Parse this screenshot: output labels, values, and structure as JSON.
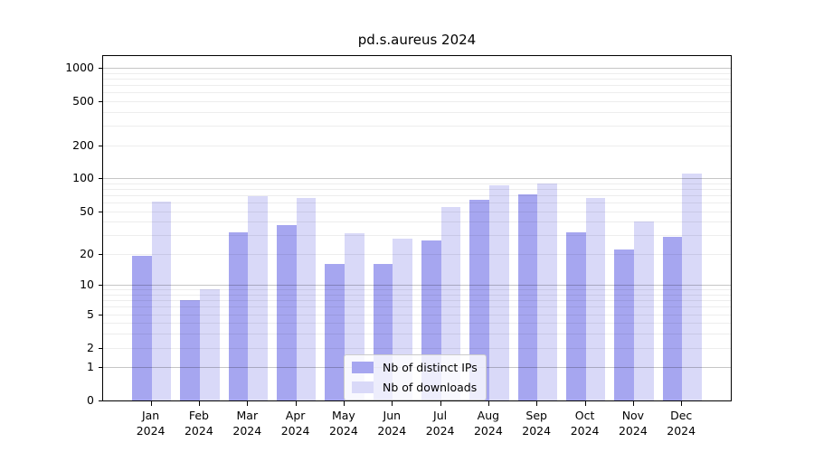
{
  "title": "pd.s.aureus 2024",
  "legend": {
    "position": "lower center",
    "items": [
      {
        "label": "Nb of distinct IPs",
        "color": "#a6a6f0"
      },
      {
        "label": "Nb of downloads",
        "color": "#d9d9f8"
      }
    ]
  },
  "axes": {
    "y_tick_labels": [
      "1000",
      "500",
      "200",
      "100",
      "50",
      "20",
      "10",
      "5",
      "2",
      "1",
      "0"
    ],
    "x_tick_labels": [
      "Jan 2024",
      "Feb 2024",
      "Mar 2024",
      "Apr 2024",
      "May 2024",
      "Jun 2024",
      "Jul 2024",
      "Aug 2024",
      "Sep 2024",
      "Oct 2024",
      "Nov 2024",
      "Dec 2024"
    ]
  },
  "colors": {
    "grid_major": "#c6c6c6",
    "grid_minor": "#ededed",
    "spine": "#000000",
    "legend_border": "#cccccc"
  },
  "chart_data": {
    "type": "bar",
    "title": "pd.s.aureus 2024",
    "xlabel": "",
    "ylabel": "",
    "yscale": "log1p",
    "ylim": [
      0,
      1275
    ],
    "yticks": [
      0,
      1,
      2,
      5,
      10,
      20,
      50,
      100,
      200,
      500,
      1000
    ],
    "grid": true,
    "legend_position": "lower center",
    "categories": [
      "Jan 2024",
      "Feb 2024",
      "Mar 2024",
      "Apr 2024",
      "May 2024",
      "Jun 2024",
      "Jul 2024",
      "Aug 2024",
      "Sep 2024",
      "Oct 2024",
      "Nov 2024",
      "Dec 2024"
    ],
    "series": [
      {
        "name": "Nb of distinct IPs",
        "color": "#a6a6f0",
        "values": [
          19,
          7,
          32,
          37,
          16,
          16,
          27,
          64,
          71,
          32,
          22,
          29
        ]
      },
      {
        "name": "Nb of downloads",
        "color": "#d9d9f8",
        "values": [
          61,
          9,
          68,
          66,
          31,
          28,
          55,
          87,
          89,
          66,
          40,
          111
        ]
      }
    ]
  }
}
